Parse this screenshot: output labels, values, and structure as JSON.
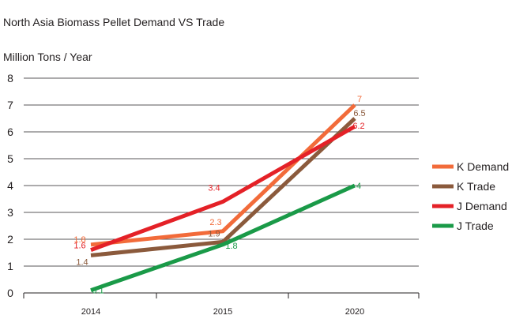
{
  "chart_data": {
    "type": "line",
    "title": "North Asia Biomass Pellet Demand VS Trade",
    "ylabel": "Million Tons / Year",
    "xlabel": "",
    "categories": [
      "2014",
      "2015",
      "2020"
    ],
    "ylim": [
      0,
      8
    ],
    "yticks": [
      "0",
      "1",
      "2",
      "3",
      "4",
      "5",
      "6",
      "7",
      "8"
    ],
    "grid": true,
    "legend_position": "right",
    "series": [
      {
        "name": "K Demand",
        "color": "#f26b3a",
        "values": [
          1.8,
          2.3,
          7
        ],
        "labels": [
          "1.8",
          "2.3",
          "7"
        ]
      },
      {
        "name": "K Trade",
        "color": "#8b5a3c",
        "values": [
          1.4,
          1.9,
          6.5
        ],
        "labels": [
          "1.4",
          "1.9",
          "6.5"
        ]
      },
      {
        "name": "J Demand",
        "color": "#e42127",
        "values": [
          1.6,
          3.4,
          6.2
        ],
        "labels": [
          "1.6",
          "3.4",
          "6.2"
        ]
      },
      {
        "name": "J Trade",
        "color": "#1a9a48",
        "values": [
          0.1,
          1.8,
          4
        ],
        "labels": [
          "0.1",
          "1.8",
          "4"
        ]
      }
    ]
  }
}
